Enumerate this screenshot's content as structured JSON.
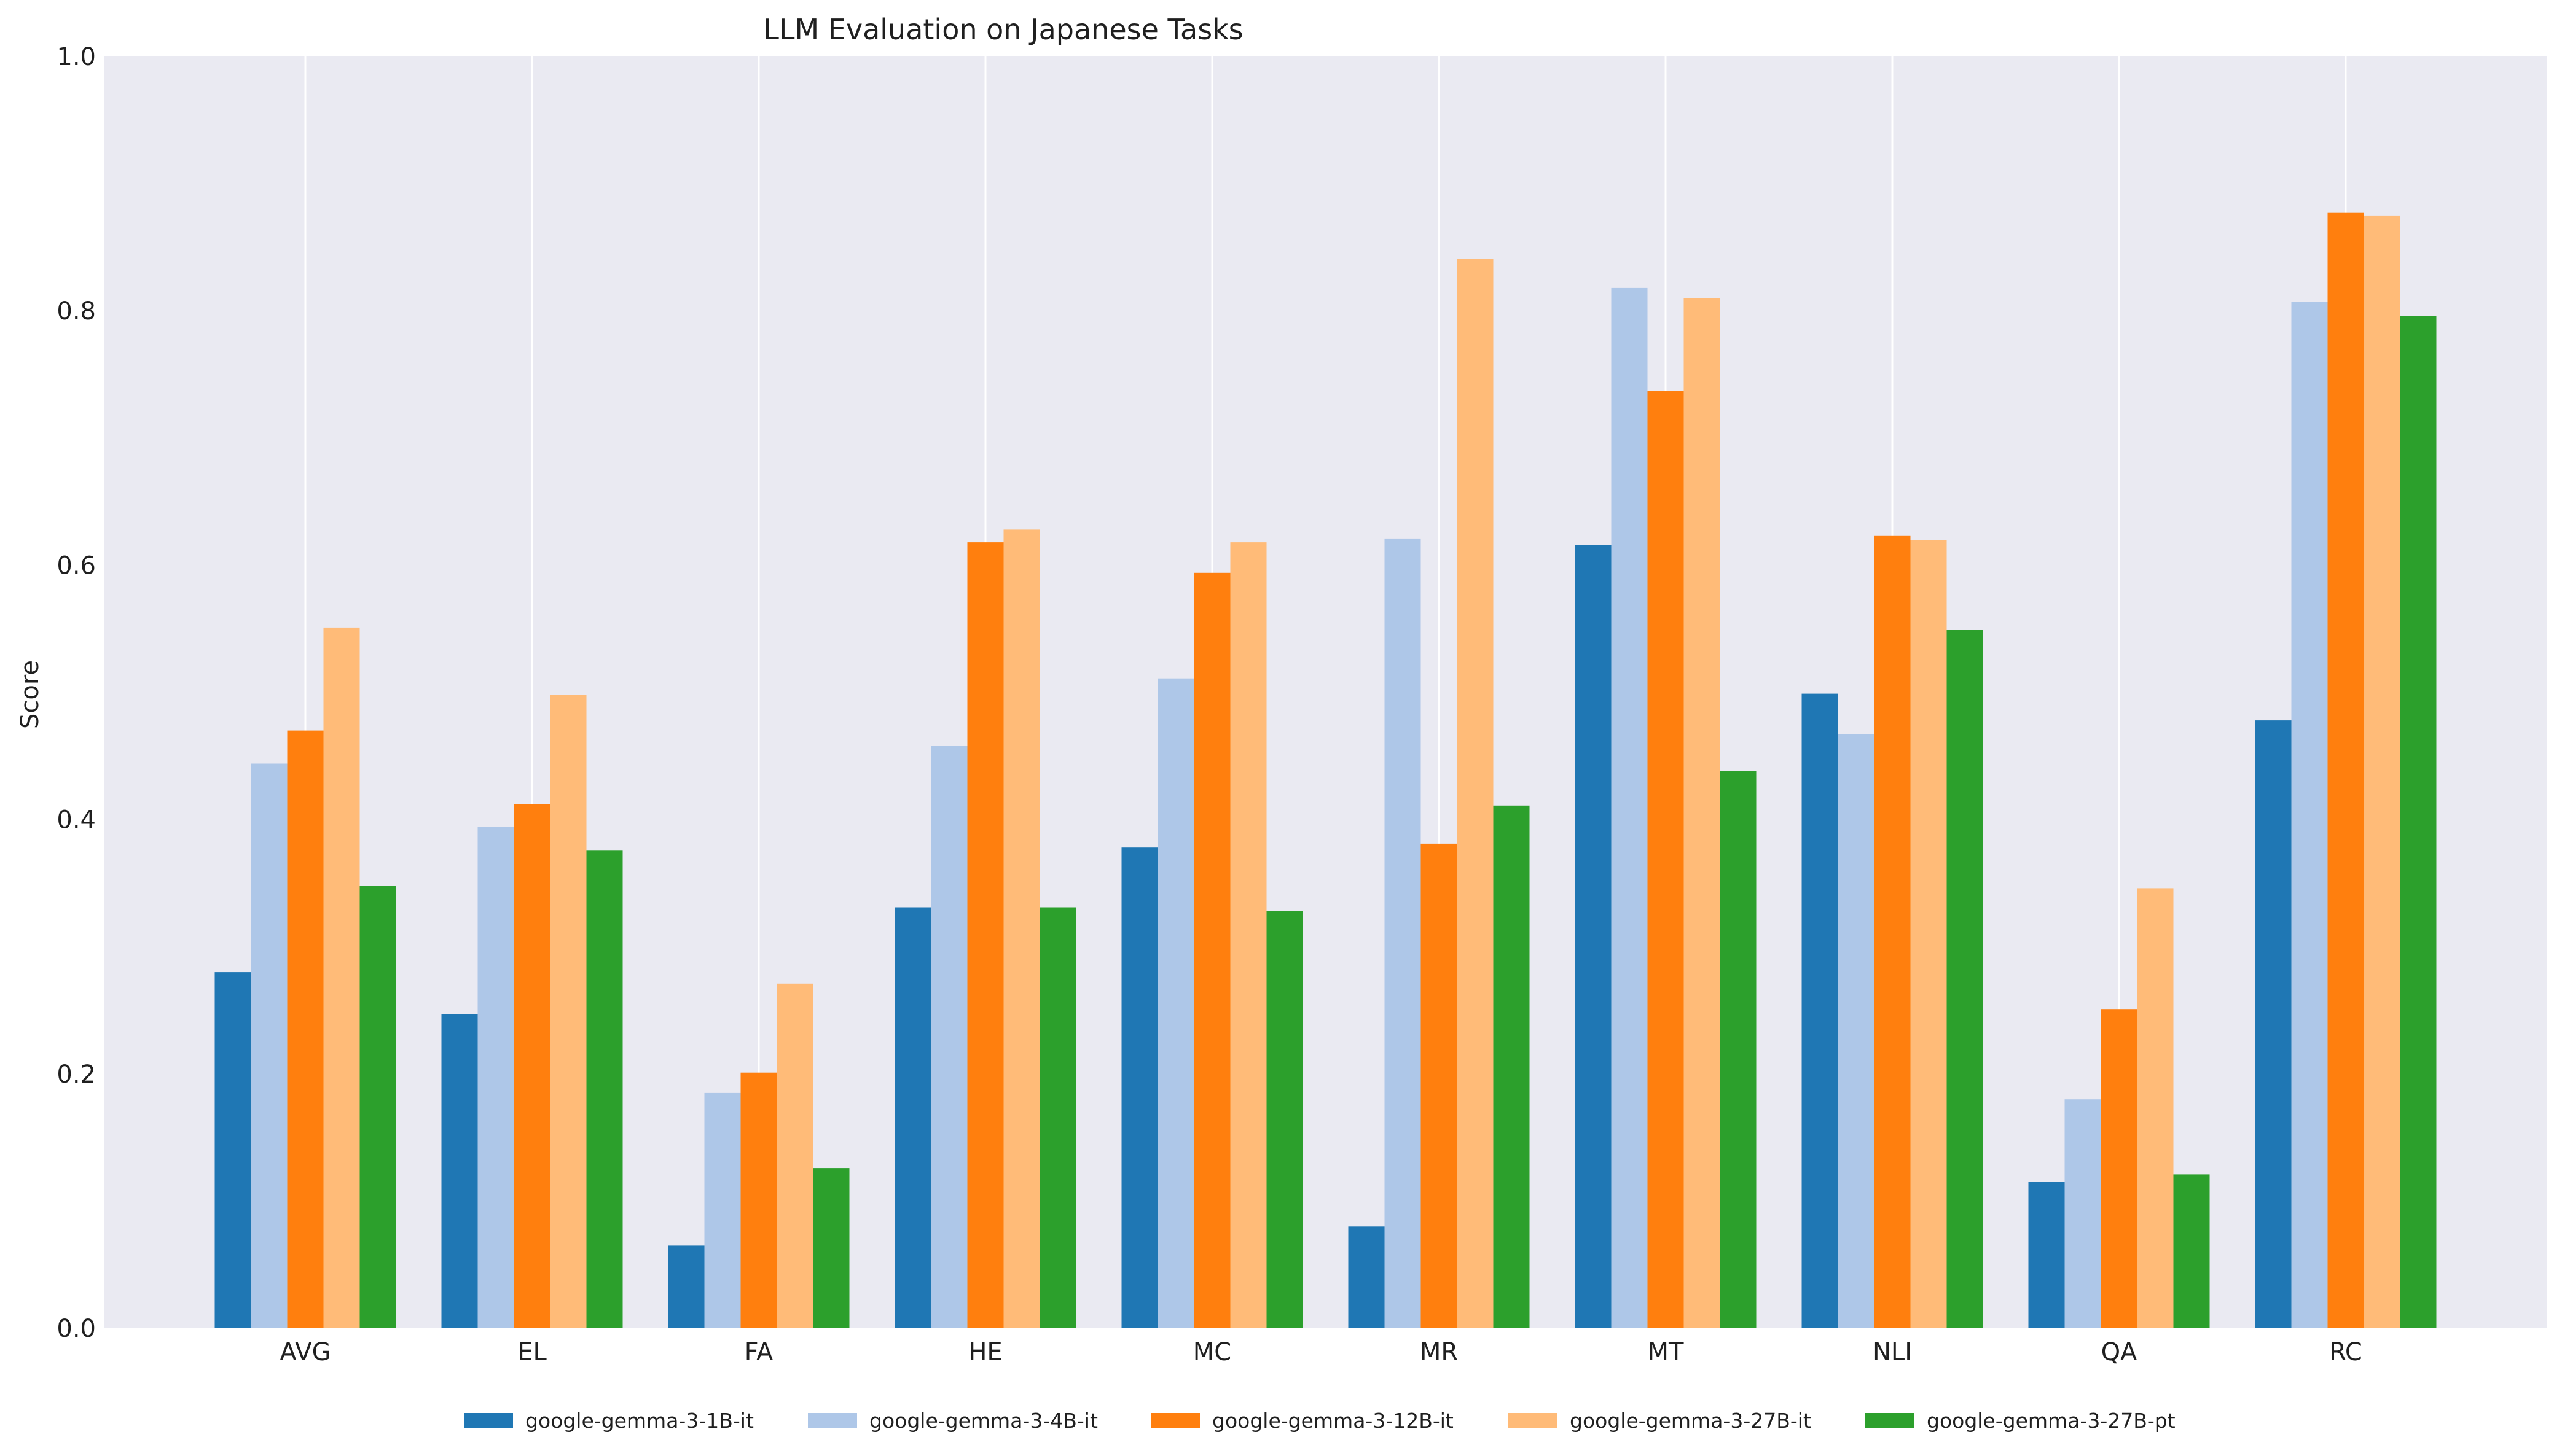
{
  "chart_data": {
    "type": "bar",
    "title": "LLM Evaluation on Japanese Tasks",
    "xlabel": "",
    "ylabel": "Score",
    "ylim": [
      0,
      1.0
    ],
    "yticks": [
      "0.0",
      "0.2",
      "0.4",
      "0.6",
      "0.8",
      "1.0"
    ],
    "grid": "vertical gridlines at category centers",
    "legend_position": "bottom-center",
    "categories": [
      "AVG",
      "EL",
      "FA",
      "HE",
      "MC",
      "MR",
      "MT",
      "NLI",
      "QA",
      "RC"
    ],
    "series": [
      {
        "name": "google-gemma-3-1B-it",
        "color": "#1f77b4",
        "values": [
          0.28,
          0.247,
          0.065,
          0.331,
          0.378,
          0.08,
          0.616,
          0.499,
          0.115,
          0.478
        ]
      },
      {
        "name": "google-gemma-3-4B-it",
        "color": "#aec7e8",
        "values": [
          0.444,
          0.394,
          0.185,
          0.458,
          0.511,
          0.621,
          0.818,
          0.467,
          0.18,
          0.807
        ]
      },
      {
        "name": "google-gemma-3-12B-it",
        "color": "#ff7f0e",
        "values": [
          0.47,
          0.412,
          0.201,
          0.618,
          0.594,
          0.381,
          0.737,
          0.623,
          0.251,
          0.877
        ]
      },
      {
        "name": "google-gemma-3-27B-it",
        "color": "#ffbb78",
        "values": [
          0.551,
          0.498,
          0.271,
          0.628,
          0.618,
          0.841,
          0.81,
          0.62,
          0.346,
          0.875
        ]
      },
      {
        "name": "google-gemma-3-27B-pt",
        "color": "#2ca02c",
        "values": [
          0.348,
          0.376,
          0.126,
          0.331,
          0.328,
          0.411,
          0.438,
          0.549,
          0.121,
          0.796
        ]
      }
    ]
  }
}
